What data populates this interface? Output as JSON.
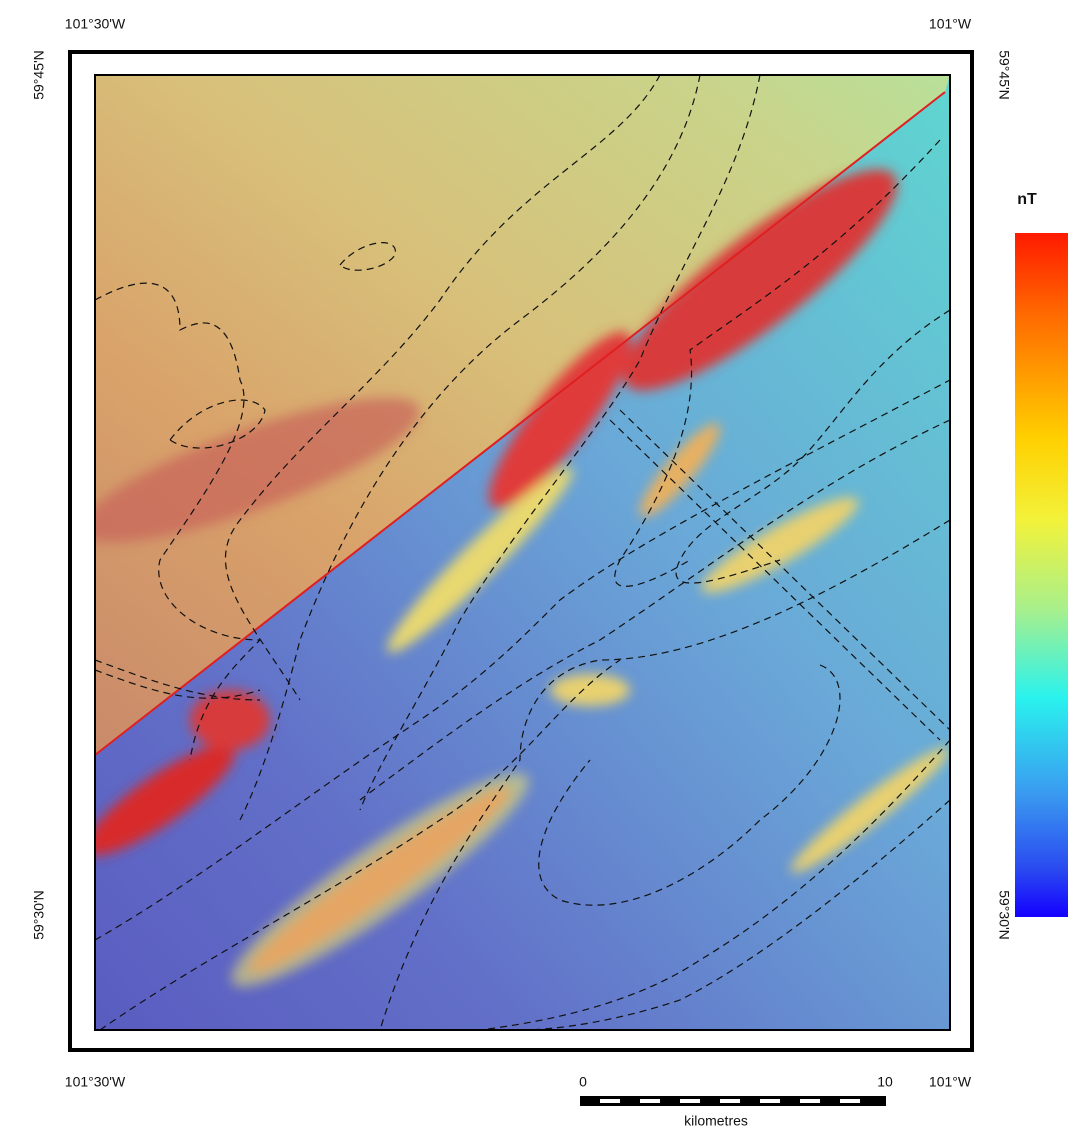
{
  "map": {
    "top_labels": [
      "101°30'W",
      "101°W"
    ],
    "bottom_labels": [
      "101°30'W",
      "101°W"
    ],
    "left_labels": [
      "59°45'N",
      "59°30'N"
    ],
    "right_labels": [
      "59°45'N",
      "59°30'N"
    ],
    "legend": {
      "title": "nT"
    },
    "scale_bar": {
      "ticks": [
        "0",
        "10"
      ],
      "unit": "kilometres"
    }
  }
}
